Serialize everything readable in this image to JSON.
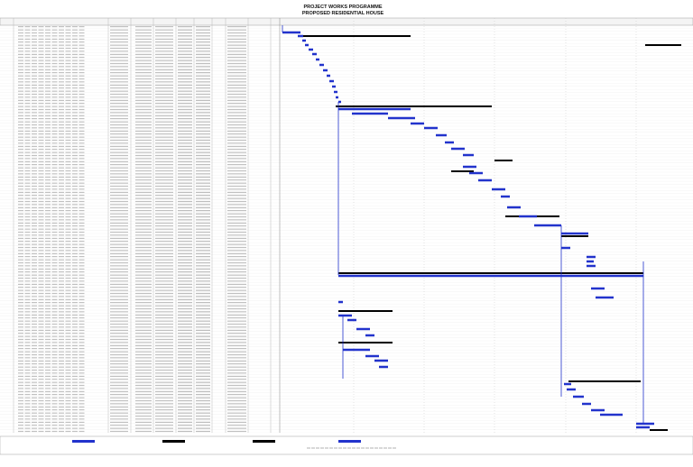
{
  "header": {
    "title": "PROJECT WORKS PROGRAMME",
    "subtitle": "PROPOSED RESIDENTIAL HOUSE"
  }
}
